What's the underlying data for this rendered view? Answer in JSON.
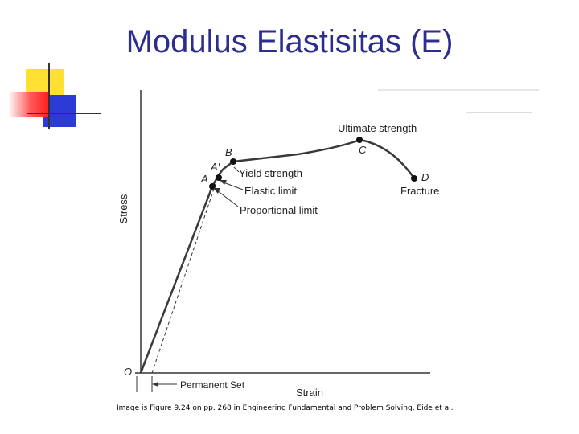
{
  "title": "Modulus Elastisitas (E)",
  "diagram": {
    "y_axis_label": "Stress",
    "x_axis_label": "Strain",
    "origin_label": "O",
    "permanent_set_label": "Permanent Set",
    "points": {
      "A": "A",
      "A_prime": "A'",
      "B": "B",
      "C": "C",
      "D": "D"
    },
    "annotations": {
      "ultimate_strength": "Ultimate strength",
      "yield_strength": "Yield strength",
      "elastic_limit": "Elastic limit",
      "proportional_limit": "Proportional limit",
      "fracture": "Fracture"
    }
  },
  "caption": "Image is Figure 9.24 on pp. 268  in Engineering Fundamental and Problem Solving, Eide et al.",
  "colors": {
    "title": "#2b2e8c",
    "deco_yellow": "#ffe033",
    "deco_blue": "#2d3bd6",
    "deco_red": "#ff2020"
  }
}
